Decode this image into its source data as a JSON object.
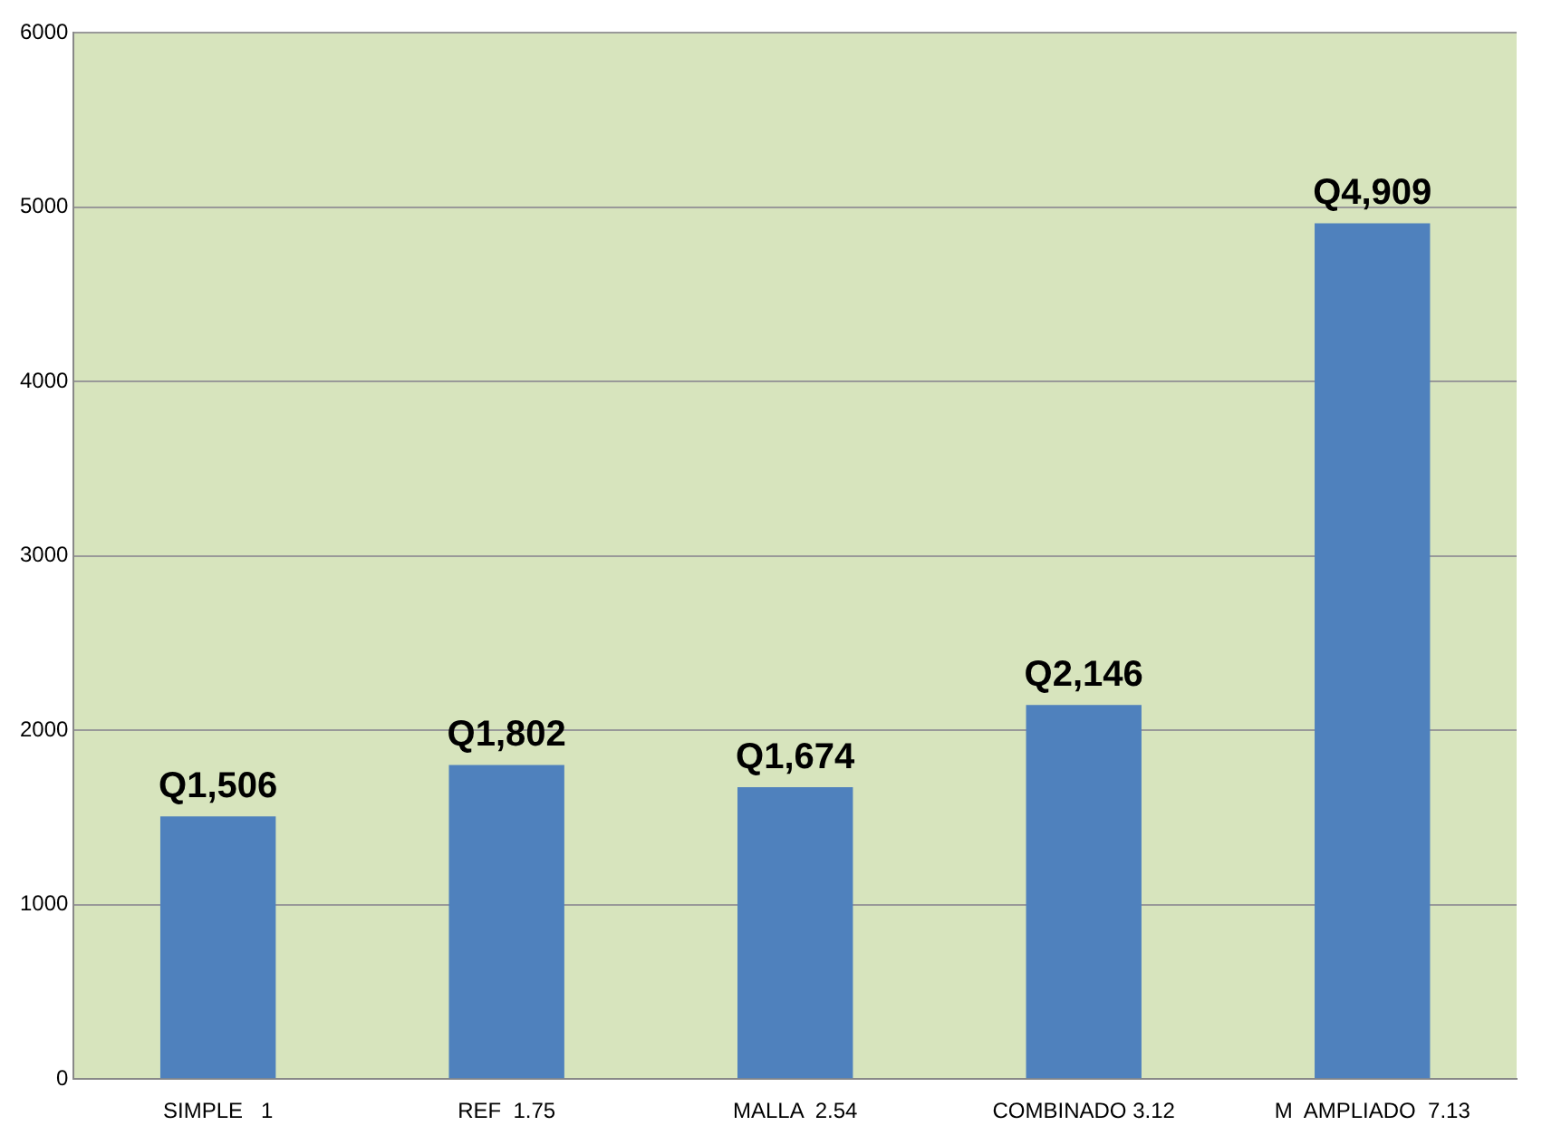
{
  "chart_data": {
    "type": "bar",
    "categories": [
      "SIMPLE   1",
      "REF  1.75",
      "MALLA  2.54",
      "COMBINADO 3.12",
      "M  AMPLIADO  7.13"
    ],
    "values": [
      1506,
      1802,
      1674,
      2146,
      4909
    ],
    "value_labels": [
      "Q1,506",
      "Q1,802",
      "Q1,674",
      "Q2,146",
      "Q4,909"
    ],
    "color": "#4f81bd",
    "ylim": [
      0,
      6000
    ],
    "yticks": [
      0,
      1000,
      2000,
      3000,
      4000,
      5000,
      6000
    ],
    "grid": "y",
    "legend": false
  }
}
